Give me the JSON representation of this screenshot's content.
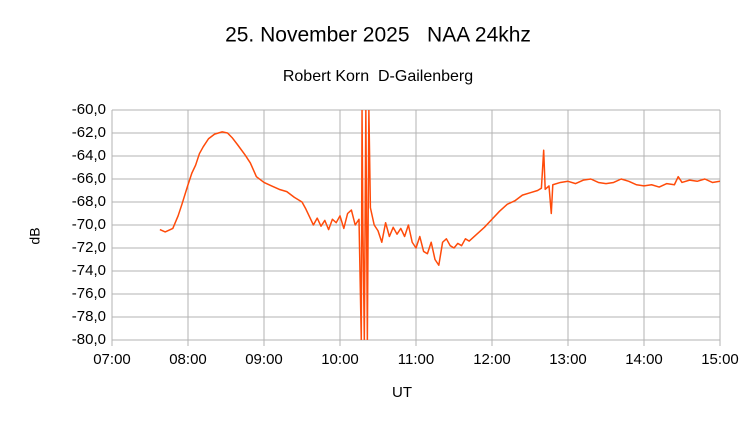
{
  "chart_data": {
    "type": "line",
    "title": "25. November 2025   NAA 24khz",
    "subtitle": "Robert Korn  D-Gailenberg",
    "x_label": "UT",
    "y_label": "dB",
    "xlim": [
      7,
      15
    ],
    "xticks": [
      {
        "value": 7,
        "label": "07:00"
      },
      {
        "value": 8,
        "label": "08:00"
      },
      {
        "value": 9,
        "label": "09:00"
      },
      {
        "value": 10,
        "label": "10:00"
      },
      {
        "value": 11,
        "label": "11:00"
      },
      {
        "value": 12,
        "label": "12:00"
      },
      {
        "value": 13,
        "label": "13:00"
      },
      {
        "value": 14,
        "label": "14:00"
      },
      {
        "value": 15,
        "label": "15:00"
      }
    ],
    "ylim": [
      -80,
      -60
    ],
    "yticks": [
      {
        "value": -80,
        "label": "-80,0"
      },
      {
        "value": -78,
        "label": "-78,0"
      },
      {
        "value": -76,
        "label": "-76,0"
      },
      {
        "value": -74,
        "label": "-74,0"
      },
      {
        "value": -72,
        "label": "-72,0"
      },
      {
        "value": -70,
        "label": "-70,0"
      },
      {
        "value": -68,
        "label": "-68,0"
      },
      {
        "value": -66,
        "label": "-66,0"
      },
      {
        "value": -64,
        "label": "-64,0"
      },
      {
        "value": -62,
        "label": "-62,0"
      },
      {
        "value": -60,
        "label": "-60,0"
      }
    ],
    "grid": true,
    "series": [
      {
        "color": "#ff4b0a",
        "x": [
          7.63,
          7.7,
          7.8,
          7.87,
          7.92,
          8.0,
          8.05,
          8.1,
          8.15,
          8.2,
          8.27,
          8.35,
          8.45,
          8.52,
          8.58,
          8.65,
          8.75,
          8.82,
          8.9,
          9.0,
          9.1,
          9.2,
          9.3,
          9.4,
          9.5,
          9.55,
          9.6,
          9.65,
          9.7,
          9.75,
          9.8,
          9.85,
          9.9,
          9.95,
          10.0,
          10.05,
          10.1,
          10.15,
          10.2,
          10.25,
          10.28,
          10.29,
          10.3,
          10.32,
          10.34,
          10.36,
          10.38,
          10.4,
          10.45,
          10.5,
          10.55,
          10.6,
          10.65,
          10.7,
          10.75,
          10.8,
          10.85,
          10.9,
          10.95,
          11.0,
          11.05,
          11.1,
          11.15,
          11.2,
          11.25,
          11.3,
          11.35,
          11.4,
          11.45,
          11.5,
          11.55,
          11.6,
          11.65,
          11.7,
          11.8,
          11.9,
          12.0,
          12.1,
          12.2,
          12.3,
          12.4,
          12.5,
          12.6,
          12.65,
          12.68,
          12.7,
          12.75,
          12.78,
          12.8,
          12.9,
          13.0,
          13.1,
          13.2,
          13.3,
          13.4,
          13.5,
          13.6,
          13.7,
          13.8,
          13.9,
          14.0,
          14.1,
          14.2,
          14.3,
          14.4,
          14.45,
          14.5,
          14.6,
          14.7,
          14.8,
          14.9,
          15.0
        ],
        "values": [
          -70.4,
          -70.6,
          -70.3,
          -69.2,
          -68.2,
          -66.5,
          -65.5,
          -64.8,
          -63.8,
          -63.2,
          -62.5,
          -62.1,
          -61.9,
          -62.0,
          -62.4,
          -63.0,
          -63.9,
          -64.6,
          -65.8,
          -66.3,
          -66.6,
          -66.9,
          -67.1,
          -67.6,
          -68.0,
          -68.6,
          -69.3,
          -70.0,
          -69.4,
          -70.1,
          -69.6,
          -70.4,
          -69.5,
          -69.8,
          -69.2,
          -70.3,
          -69.0,
          -68.7,
          -70.0,
          -69.5,
          -80,
          -60,
          -69.5,
          -80,
          -60,
          -80,
          -60,
          -68.5,
          -70.0,
          -70.5,
          -71.5,
          -69.8,
          -71.0,
          -70.2,
          -70.8,
          -70.3,
          -71.0,
          -70.0,
          -71.5,
          -72.0,
          -71.0,
          -72.3,
          -72.5,
          -71.5,
          -73.0,
          -73.5,
          -71.5,
          -71.2,
          -71.8,
          -72.0,
          -71.6,
          -71.8,
          -71.2,
          -71.4,
          -70.8,
          -70.2,
          -69.5,
          -68.8,
          -68.2,
          -67.9,
          -67.4,
          -67.2,
          -67.0,
          -66.8,
          -63.5,
          -66.9,
          -66.6,
          -69.0,
          -66.5,
          -66.3,
          -66.2,
          -66.4,
          -66.1,
          -66.0,
          -66.3,
          -66.4,
          -66.3,
          -66.0,
          -66.2,
          -66.5,
          -66.6,
          -66.5,
          -66.7,
          -66.4,
          -66.5,
          -65.8,
          -66.3,
          -66.1,
          -66.2,
          -66.0,
          -66.3,
          -66.2
        ]
      }
    ]
  }
}
